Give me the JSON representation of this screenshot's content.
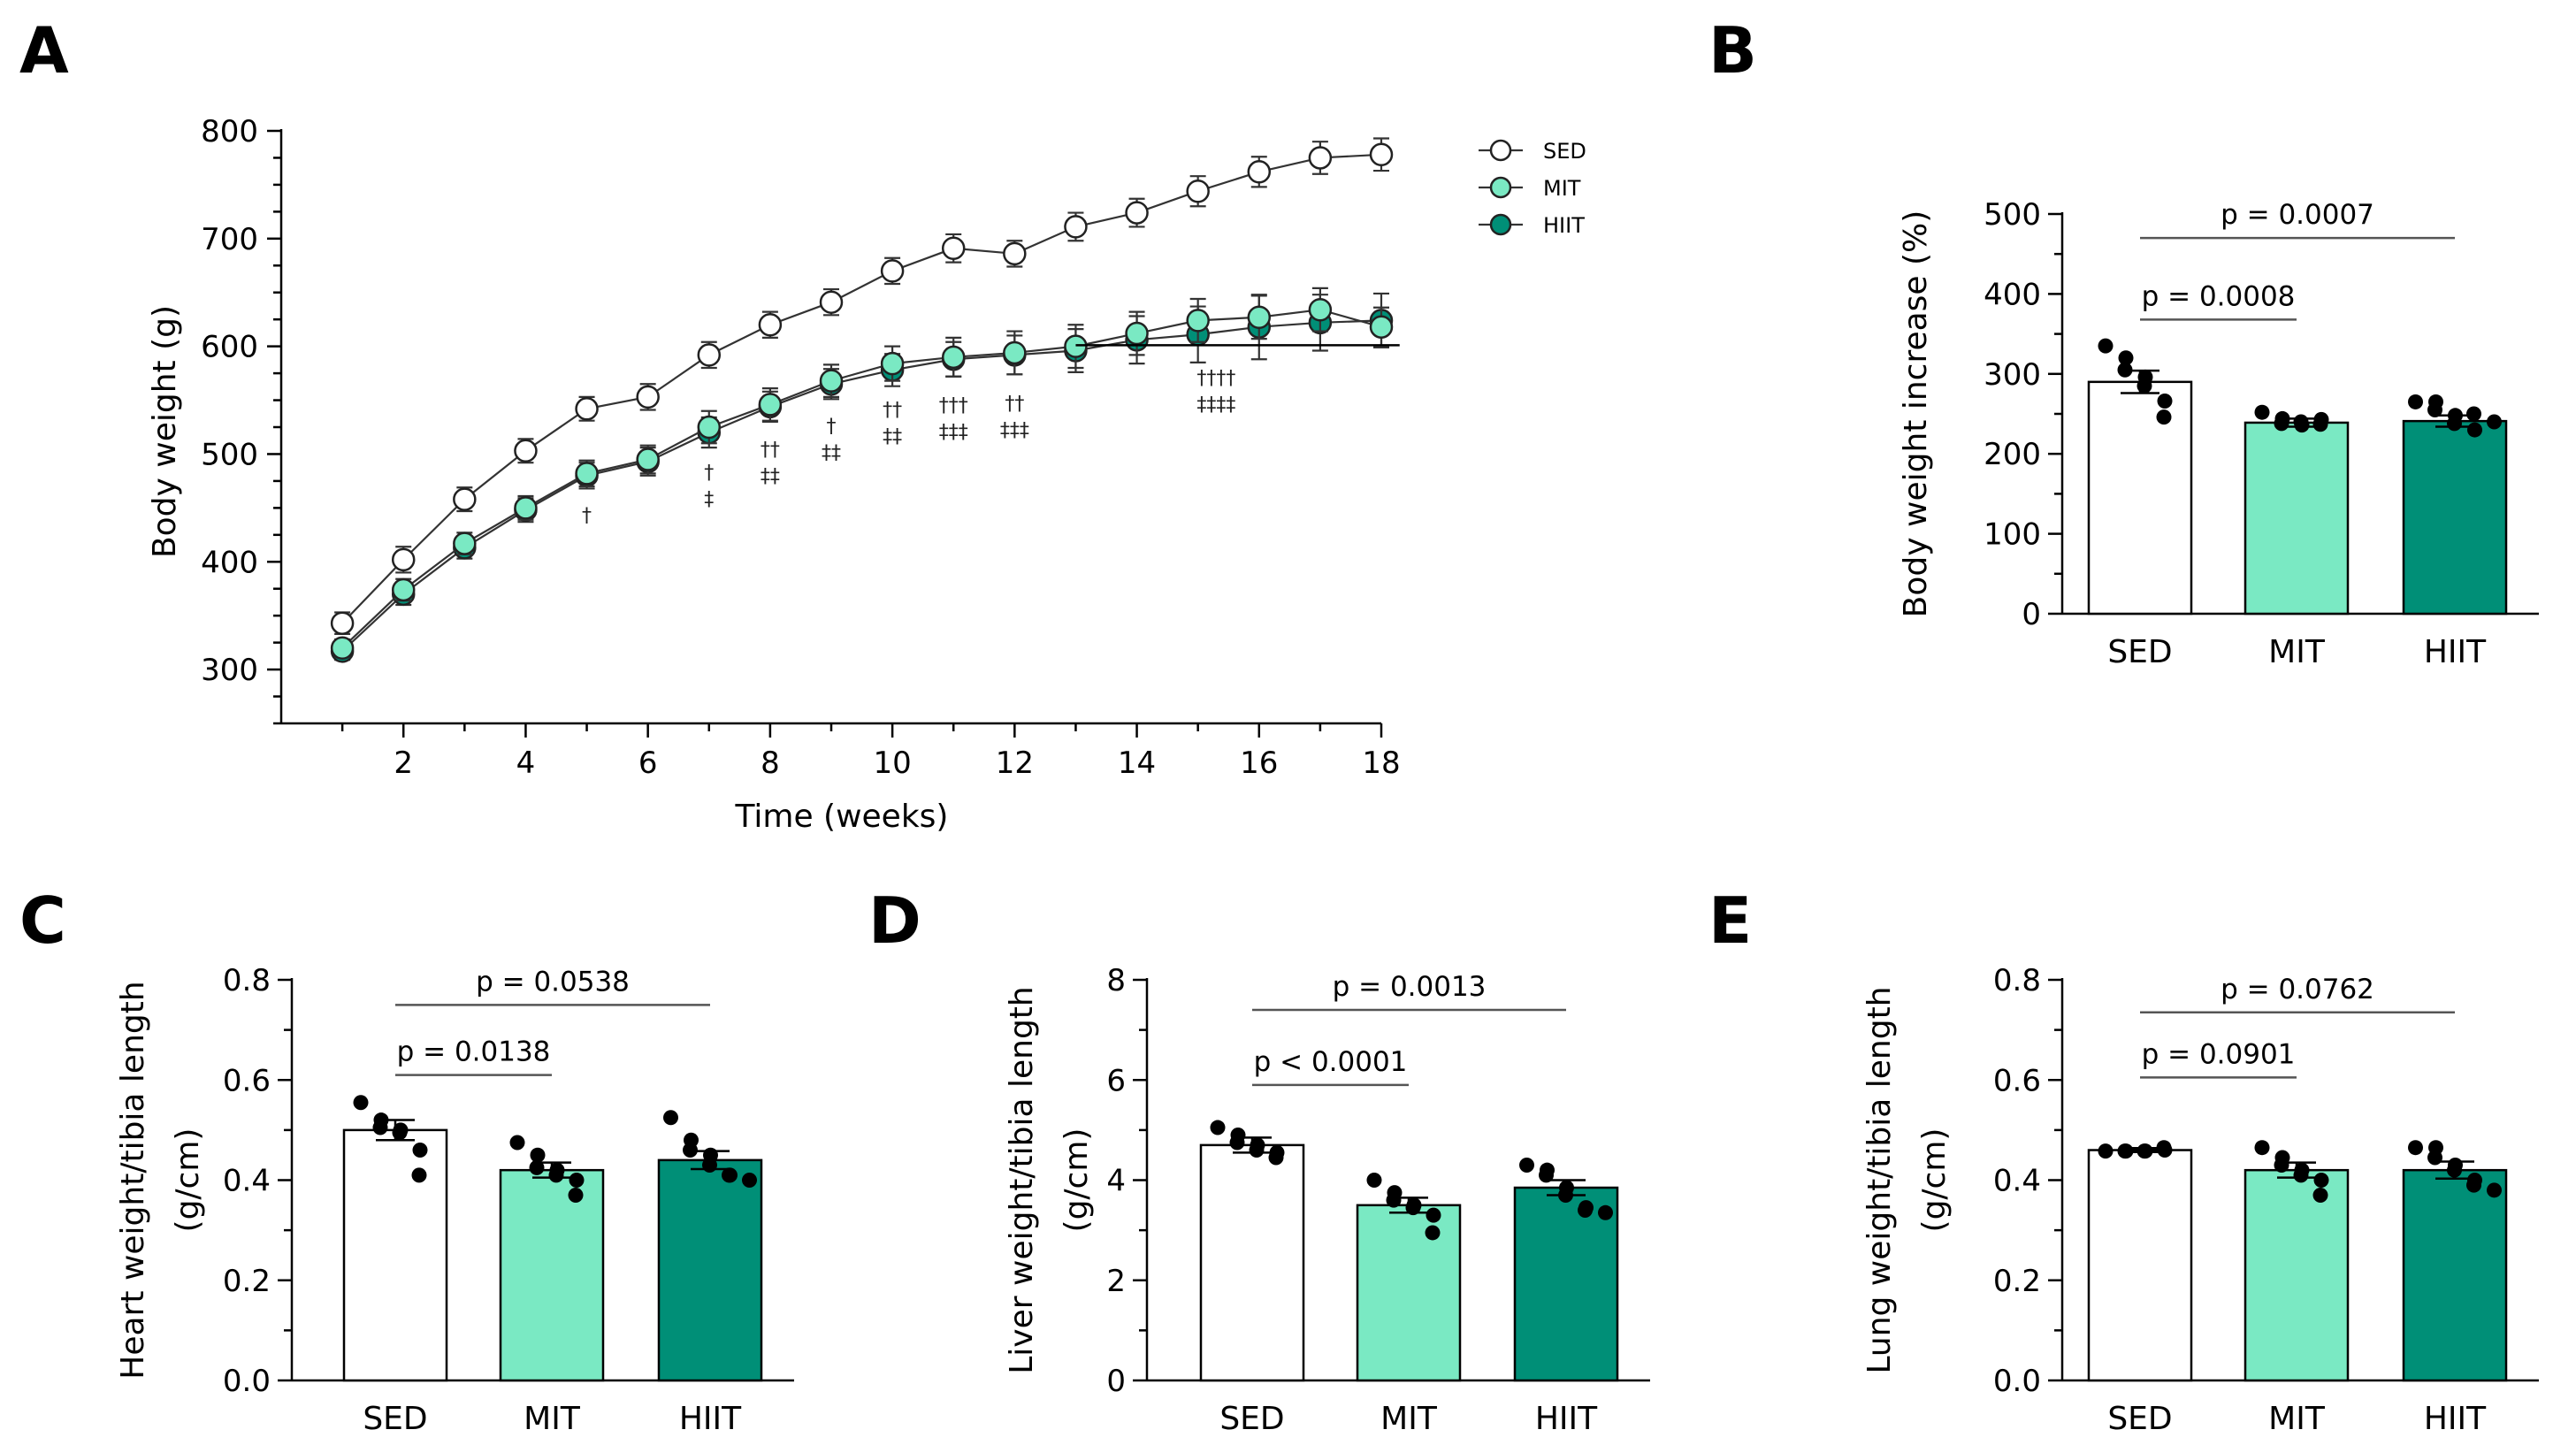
{
  "colors": {
    "sed": "#ffffff",
    "mit": "#7ae9c3",
    "hiit": "#008f77",
    "ink": "#000000",
    "line": "#444444"
  },
  "chart_data": [
    {
      "id": "A",
      "type": "line",
      "panel_label": "A",
      "xlabel": "Time (weeks)",
      "ylabel": "Body weight (g)",
      "xlim": [
        0,
        18
      ],
      "ylim": [
        250,
        800
      ],
      "xticks": [
        2,
        4,
        6,
        8,
        10,
        12,
        14,
        16,
        18
      ],
      "yticks": [
        300,
        400,
        500,
        600,
        700,
        800
      ],
      "x": [
        1,
        2,
        3,
        4,
        5,
        6,
        7,
        8,
        9,
        10,
        11,
        12,
        13,
        14,
        15,
        16,
        17,
        18
      ],
      "series": [
        {
          "name": "SED",
          "color": "#ffffff",
          "values": [
            343,
            402,
            458,
            503,
            542,
            553,
            592,
            620,
            641,
            670,
            691,
            686,
            711,
            724,
            744,
            762,
            775,
            778
          ],
          "err": [
            10,
            12,
            11,
            11,
            11,
            12,
            12,
            12,
            12,
            12,
            13,
            12,
            13,
            13,
            14,
            14,
            15,
            15
          ]
        },
        {
          "name": "MIT",
          "color": "#7ae9c3",
          "values": [
            320,
            374,
            417,
            450,
            482,
            495,
            525,
            546,
            568,
            584,
            590,
            594,
            600,
            612,
            624,
            627,
            634,
            618
          ],
          "err": [
            8,
            10,
            10,
            11,
            12,
            13,
            15,
            15,
            15,
            16,
            18,
            20,
            20,
            20,
            20,
            20,
            20,
            18
          ]
        },
        {
          "name": "HIIT",
          "color": "#008f77",
          "values": [
            317,
            370,
            413,
            448,
            480,
            493,
            520,
            544,
            565,
            578,
            588,
            592,
            596,
            606,
            611,
            618,
            622,
            624
          ],
          "err": [
            8,
            10,
            10,
            11,
            12,
            13,
            14,
            14,
            14,
            15,
            16,
            18,
            20,
            22,
            26,
            30,
            26,
            25
          ]
        }
      ],
      "significance": [
        {
          "x": 5,
          "lines": [
            "†"
          ]
        },
        {
          "x": 7,
          "lines": [
            "†",
            "‡"
          ]
        },
        {
          "x": 8,
          "lines": [
            "††",
            "‡‡"
          ]
        },
        {
          "x": 9,
          "lines": [
            "†",
            "‡‡"
          ]
        },
        {
          "x": 10,
          "lines": [
            "††",
            "‡‡"
          ]
        },
        {
          "x": 11,
          "lines": [
            "†††",
            "‡‡‡"
          ]
        },
        {
          "x": 12,
          "lines": [
            "††",
            "‡‡‡"
          ]
        },
        {
          "x": 15.3,
          "lines": [
            "††††",
            "‡‡‡‡"
          ]
        }
      ],
      "sig_bar_x": [
        13,
        18.3
      ]
    },
    {
      "id": "B",
      "type": "bar",
      "panel_label": "B",
      "categories": [
        "SED",
        "MIT",
        "HIIT"
      ],
      "values": [
        290,
        239,
        241
      ],
      "err": [
        14,
        5,
        7
      ],
      "points": [
        [
          335,
          320,
          305,
          296,
          285,
          266,
          246
        ],
        [
          252,
          244,
          238,
          236,
          240,
          243,
          237
        ],
        [
          265,
          265,
          255,
          248,
          238,
          230,
          250,
          240
        ]
      ],
      "ylabel": "Body weight increase (%)",
      "ylim": [
        0,
        500
      ],
      "yticks": [
        0,
        100,
        200,
        300,
        400,
        500
      ],
      "brackets": [
        {
          "from": 0,
          "to": 1,
          "y": 368,
          "label": "p = 0.0008"
        },
        {
          "from": 0,
          "to": 2,
          "y": 470,
          "label": "p = 0.0007"
        }
      ]
    },
    {
      "id": "C",
      "type": "bar",
      "panel_label": "C",
      "categories": [
        "SED",
        "MIT",
        "HIIT"
      ],
      "values": [
        0.5,
        0.42,
        0.44
      ],
      "err": [
        0.02,
        0.015,
        0.018
      ],
      "points": [
        [
          0.555,
          0.52,
          0.505,
          0.5,
          0.495,
          0.46,
          0.41
        ],
        [
          0.475,
          0.45,
          0.425,
          0.42,
          0.41,
          0.4,
          0.37
        ],
        [
          0.525,
          0.48,
          0.46,
          0.45,
          0.43,
          0.41,
          0.41,
          0.4
        ]
      ],
      "ylabel_lines": [
        "Heart weight/tibia length",
        "(g/cm)"
      ],
      "ylim": [
        0,
        0.8
      ],
      "yticks": [
        0.0,
        0.2,
        0.4,
        0.6,
        0.8
      ],
      "tick_format": "0.1",
      "brackets": [
        {
          "from": 0,
          "to": 1,
          "y": 0.61,
          "label": "p = 0.0138"
        },
        {
          "from": 0,
          "to": 2,
          "y": 0.75,
          "label": "p = 0.0538"
        }
      ]
    },
    {
      "id": "D",
      "type": "bar",
      "panel_label": "D",
      "categories": [
        "SED",
        "MIT",
        "HIIT"
      ],
      "values": [
        4.7,
        3.5,
        3.85
      ],
      "err": [
        0.15,
        0.15,
        0.15
      ],
      "points": [
        [
          5.05,
          4.9,
          4.75,
          4.7,
          4.6,
          4.55,
          4.45
        ],
        [
          4.0,
          3.75,
          3.6,
          3.5,
          3.45,
          3.3,
          2.95
        ],
        [
          4.3,
          4.2,
          4.1,
          3.85,
          3.7,
          3.45,
          3.4,
          3.35
        ]
      ],
      "ylabel_lines": [
        "Liver weight/tibia length",
        "(g/cm)"
      ],
      "ylim": [
        0,
        8
      ],
      "yticks": [
        0,
        2,
        4,
        6,
        8
      ],
      "tick_format": "0",
      "brackets": [
        {
          "from": 0,
          "to": 1,
          "y": 5.9,
          "label": "p < 0.0001"
        },
        {
          "from": 0,
          "to": 2,
          "y": 7.4,
          "label": "p = 0.0013"
        }
      ]
    },
    {
      "id": "E",
      "type": "bar",
      "panel_label": "E",
      "categories": [
        "SED",
        "MIT",
        "HIIT"
      ],
      "values": [
        0.46,
        0.42,
        0.42
      ],
      "err": [
        0.004,
        0.015,
        0.017
      ],
      "points": [
        [
          0.458,
          0.458,
          0.458,
          0.458,
          0.458,
          0.46,
          0.465
        ],
        [
          0.465,
          0.445,
          0.43,
          0.42,
          0.41,
          0.4,
          0.37
        ],
        [
          0.465,
          0.465,
          0.445,
          0.43,
          0.42,
          0.4,
          0.39,
          0.38
        ]
      ],
      "ylabel_lines": [
        "Lung weight/tibia length",
        "(g/cm)"
      ],
      "ylim": [
        0,
        0.8
      ],
      "yticks": [
        0.0,
        0.2,
        0.4,
        0.6,
        0.8
      ],
      "tick_format": "0.1",
      "brackets": [
        {
          "from": 0,
          "to": 1,
          "y": 0.605,
          "label": "p = 0.0901"
        },
        {
          "from": 0,
          "to": 2,
          "y": 0.735,
          "label": "p = 0.0762"
        }
      ]
    }
  ]
}
